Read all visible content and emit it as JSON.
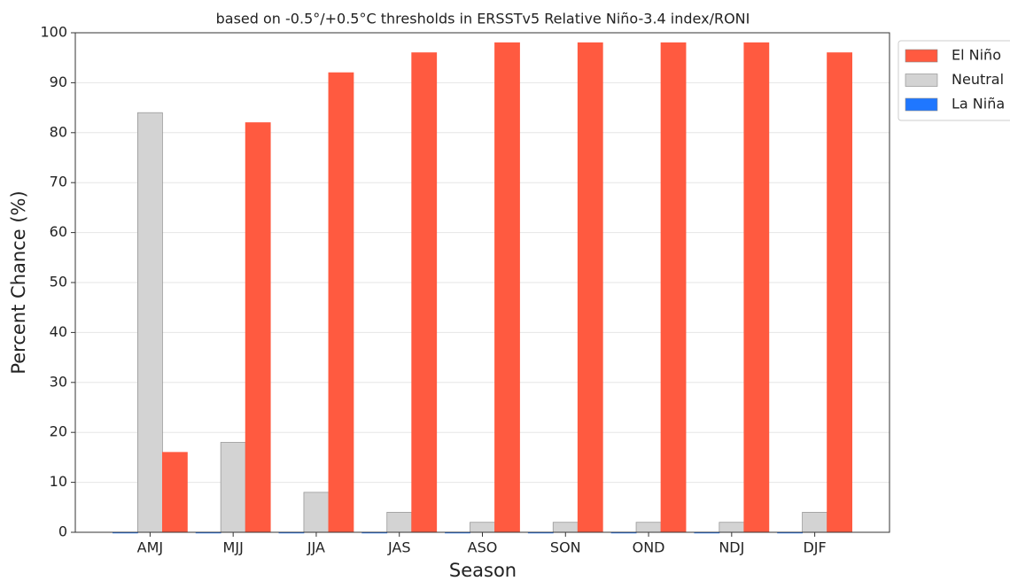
{
  "chart_data": {
    "type": "bar",
    "title": "based on -0.5°/+0.5°C thresholds in ERSSTv5 Relative Niño-3.4 index/RONI",
    "x_label": "Season",
    "y_label": "Percent Chance (%)",
    "categories": [
      "AMJ",
      "MJJ",
      "JJA",
      "JAS",
      "ASO",
      "SON",
      "OND",
      "NDJ",
      "DJF"
    ],
    "series": [
      {
        "name": "La Niña",
        "color": "#1f77ff",
        "values": [
          0,
          0,
          0,
          0,
          0,
          0,
          0,
          0,
          0
        ]
      },
      {
        "name": "Neutral",
        "color": "#d3d3d3",
        "values": [
          84,
          18,
          8,
          4,
          2,
          2,
          2,
          2,
          4
        ]
      },
      {
        "name": "El Niño",
        "color": "#ff5a40",
        "values": [
          16,
          82,
          92,
          96,
          98,
          98,
          98,
          98,
          96
        ]
      }
    ],
    "legend_order": [
      "El Niño",
      "Neutral",
      "La Niña"
    ],
    "ylim": [
      0,
      100
    ],
    "yticks": [
      0,
      10,
      20,
      30,
      40,
      50,
      60,
      70,
      80,
      90,
      100
    ],
    "grid": true,
    "legend": "outside right"
  }
}
